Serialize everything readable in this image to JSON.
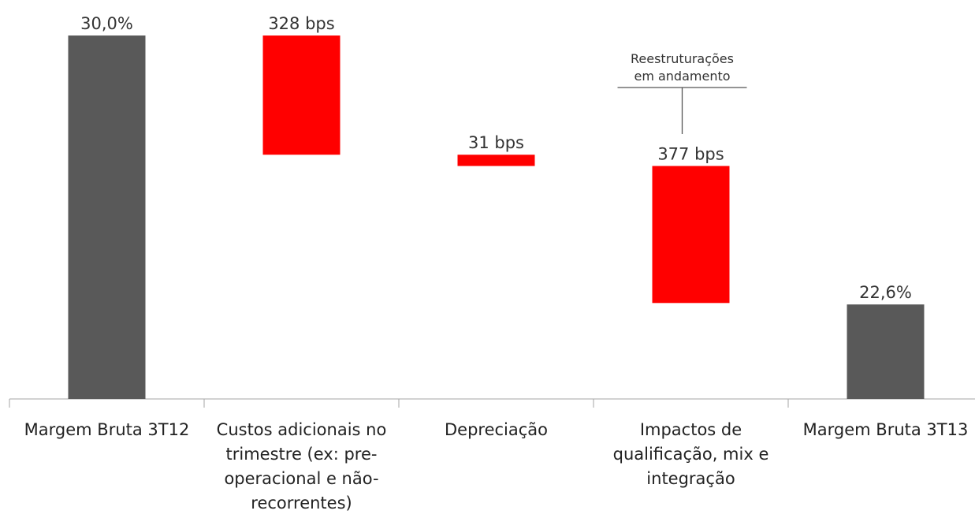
{
  "chart_data": {
    "type": "waterfall",
    "categories": [
      "Margem Bruta 3T12",
      "Custos adicionais no trimestre (ex: pre-operacional e não-recorrentes)",
      "Depreciação",
      "Impactos de qualificação, mix e integração",
      "Margem Bruta 3T13"
    ],
    "values": [
      30.0,
      -3.28,
      -0.31,
      -3.77,
      22.6
    ],
    "value_labels": [
      "30,0%",
      "328 bps",
      "31 bps",
      "377 bps",
      "22,6%"
    ],
    "measures": [
      "absolute",
      "relative",
      "relative",
      "relative",
      "total"
    ],
    "colors": {
      "total": "#595959",
      "decrease": "#ff0000"
    },
    "ylim": [
      20,
      30.5
    ],
    "annotation": {
      "lines": [
        "Reestruturações",
        "em andamento"
      ],
      "category": 3
    }
  }
}
